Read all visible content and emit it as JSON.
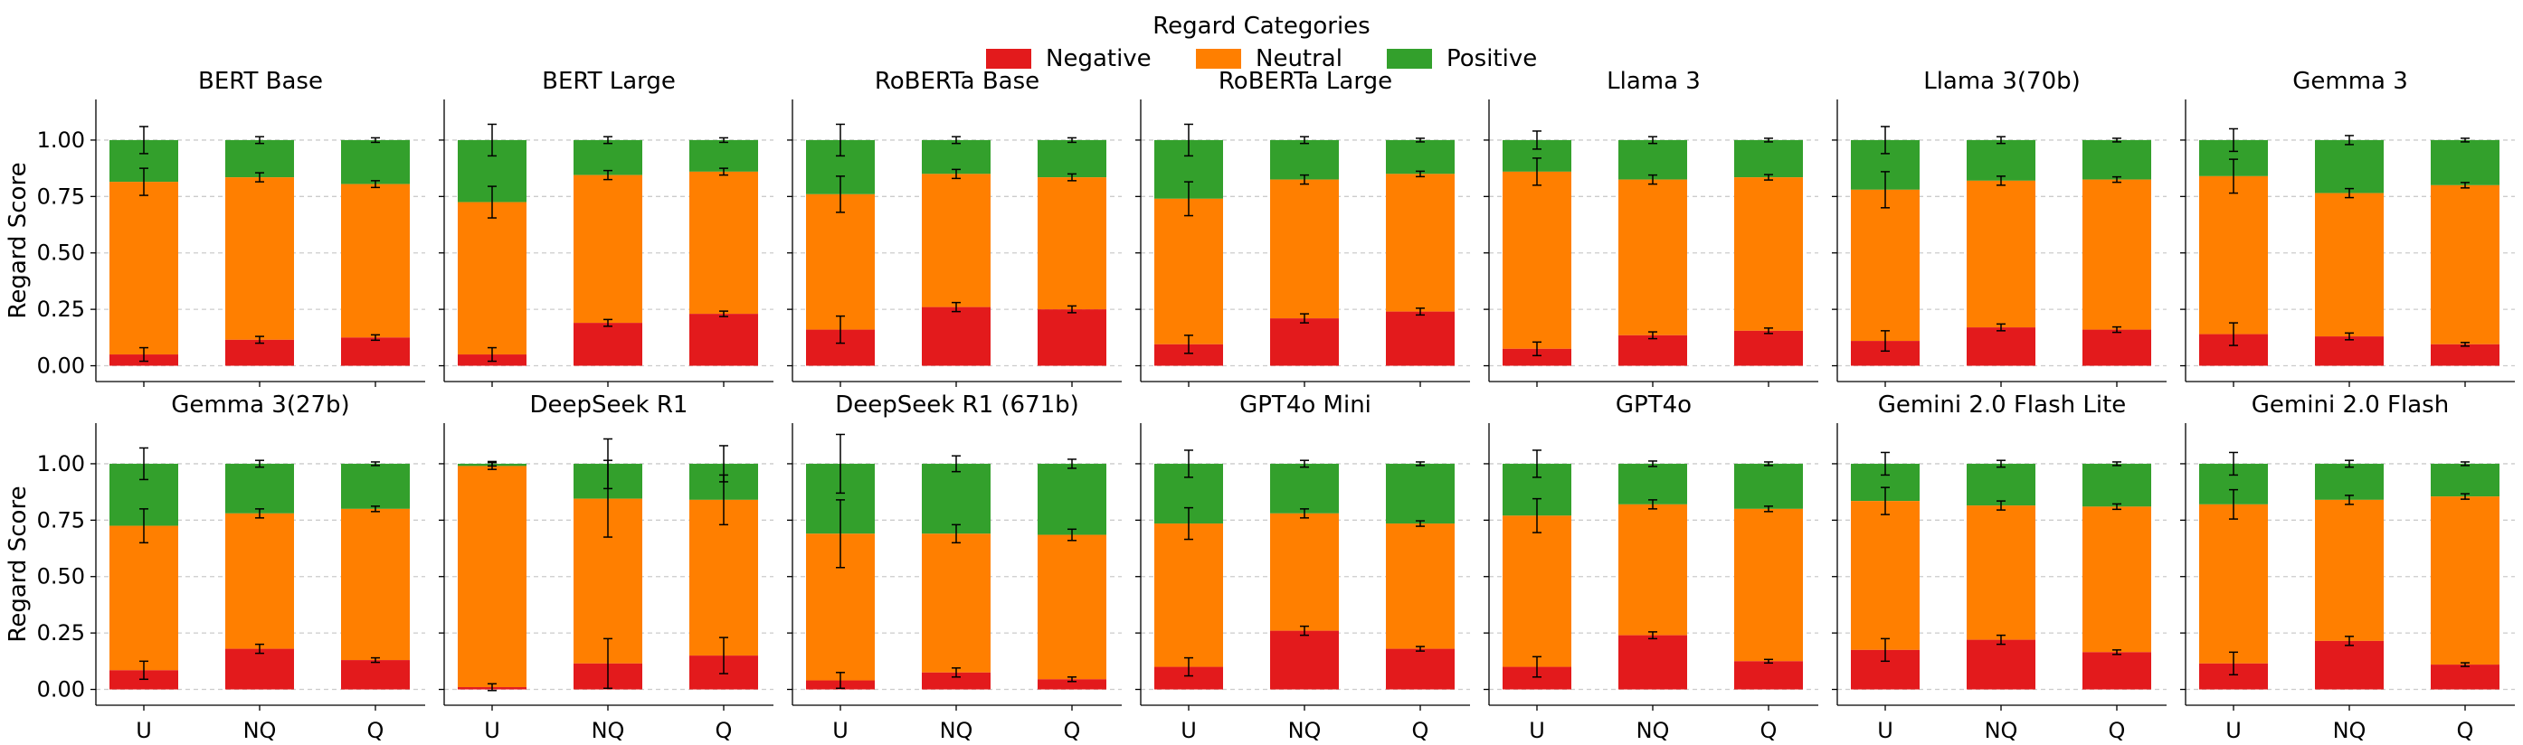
{
  "chart_data": {
    "type": "bar",
    "stacked": true,
    "legend": {
      "title": "Regard Categories",
      "placement": "top-center",
      "entries": [
        "Negative",
        "Neutral",
        "Positive"
      ]
    },
    "colors": {
      "Negative": "#e31a1c",
      "Neutral": "#ff7f00",
      "Positive": "#33a02c"
    },
    "ylabel": "Regard Score",
    "ylim": [
      -0.07,
      1.18
    ],
    "yticks": [
      "0.00",
      "0.25",
      "0.50",
      "0.75",
      "1.00"
    ],
    "categories": [
      "U",
      "NQ",
      "Q"
    ],
    "grid": "horizontal dashed",
    "panels": [
      {
        "title": "BERT Base",
        "negative": [
          0.05,
          0.115,
          0.125
        ],
        "negative_err": [
          0.03,
          0.015,
          0.012
        ],
        "neutral_top": [
          0.815,
          0.835,
          0.805
        ],
        "neutral_err": [
          0.06,
          0.02,
          0.015
        ],
        "positive_err": [
          0.06,
          0.015,
          0.01
        ]
      },
      {
        "title": "BERT Large",
        "negative": [
          0.05,
          0.19,
          0.23
        ],
        "negative_err": [
          0.03,
          0.015,
          0.012
        ],
        "neutral_top": [
          0.725,
          0.845,
          0.86
        ],
        "neutral_err": [
          0.07,
          0.02,
          0.015
        ],
        "positive_err": [
          0.07,
          0.015,
          0.01
        ]
      },
      {
        "title": "RoBERTa Base",
        "negative": [
          0.16,
          0.26,
          0.25
        ],
        "negative_err": [
          0.06,
          0.02,
          0.015
        ],
        "neutral_top": [
          0.76,
          0.85,
          0.835
        ],
        "neutral_err": [
          0.08,
          0.02,
          0.015
        ],
        "positive_err": [
          0.07,
          0.015,
          0.01
        ]
      },
      {
        "title": "RoBERTa Large",
        "negative": [
          0.095,
          0.21,
          0.24
        ],
        "negative_err": [
          0.04,
          0.02,
          0.015
        ],
        "neutral_top": [
          0.74,
          0.825,
          0.85
        ],
        "neutral_err": [
          0.075,
          0.02,
          0.012
        ],
        "positive_err": [
          0.07,
          0.015,
          0.008
        ]
      },
      {
        "title": "Llama 3",
        "negative": [
          0.075,
          0.135,
          0.155
        ],
        "negative_err": [
          0.03,
          0.015,
          0.012
        ],
        "neutral_top": [
          0.86,
          0.825,
          0.835
        ],
        "neutral_err": [
          0.06,
          0.02,
          0.012
        ],
        "positive_err": [
          0.04,
          0.015,
          0.008
        ]
      },
      {
        "title": "Llama 3(70b)",
        "negative": [
          0.11,
          0.17,
          0.16
        ],
        "negative_err": [
          0.045,
          0.015,
          0.012
        ],
        "neutral_top": [
          0.78,
          0.82,
          0.825
        ],
        "neutral_err": [
          0.08,
          0.02,
          0.012
        ],
        "positive_err": [
          0.06,
          0.015,
          0.008
        ]
      },
      {
        "title": "Gemma 3",
        "negative": [
          0.14,
          0.13,
          0.095
        ],
        "negative_err": [
          0.05,
          0.015,
          0.008
        ],
        "neutral_top": [
          0.84,
          0.765,
          0.8
        ],
        "neutral_err": [
          0.075,
          0.02,
          0.012
        ],
        "positive_err": [
          0.05,
          0.02,
          0.008
        ]
      },
      {
        "title": "Gemma 3(27b)",
        "negative": [
          0.085,
          0.18,
          0.13
        ],
        "negative_err": [
          0.04,
          0.02,
          0.01
        ],
        "neutral_top": [
          0.725,
          0.78,
          0.8
        ],
        "neutral_err": [
          0.075,
          0.02,
          0.012
        ],
        "positive_err": [
          0.07,
          0.015,
          0.008
        ]
      },
      {
        "title": "DeepSeek R1",
        "negative": [
          0.01,
          0.115,
          0.15
        ],
        "negative_err": [
          0.015,
          0.11,
          0.08
        ],
        "neutral_top": [
          0.99,
          0.845,
          0.84
        ],
        "neutral_err": [
          0.015,
          0.17,
          0.11
        ],
        "positive_err": [
          0.01,
          0.11,
          0.08
        ]
      },
      {
        "title": "DeepSeek R1 (671b)",
        "negative": [
          0.04,
          0.075,
          0.045
        ],
        "negative_err": [
          0.035,
          0.02,
          0.01
        ],
        "neutral_top": [
          0.69,
          0.69,
          0.685
        ],
        "neutral_err": [
          0.15,
          0.04,
          0.025
        ],
        "positive_err": [
          0.13,
          0.035,
          0.02
        ]
      },
      {
        "title": "GPT4o Mini",
        "negative": [
          0.1,
          0.26,
          0.18
        ],
        "negative_err": [
          0.04,
          0.02,
          0.01
        ],
        "neutral_top": [
          0.735,
          0.78,
          0.735
        ],
        "neutral_err": [
          0.07,
          0.02,
          0.012
        ],
        "positive_err": [
          0.06,
          0.015,
          0.008
        ]
      },
      {
        "title": "GPT4o",
        "negative": [
          0.1,
          0.24,
          0.125
        ],
        "negative_err": [
          0.045,
          0.015,
          0.008
        ],
        "neutral_top": [
          0.77,
          0.82,
          0.8
        ],
        "neutral_err": [
          0.075,
          0.02,
          0.012
        ],
        "positive_err": [
          0.06,
          0.012,
          0.008
        ]
      },
      {
        "title": "Gemini 2.0 Flash Lite",
        "negative": [
          0.175,
          0.22,
          0.165
        ],
        "negative_err": [
          0.05,
          0.02,
          0.01
        ],
        "neutral_top": [
          0.835,
          0.815,
          0.81
        ],
        "neutral_err": [
          0.06,
          0.02,
          0.012
        ],
        "positive_err": [
          0.05,
          0.015,
          0.008
        ]
      },
      {
        "title": "Gemini 2.0 Flash",
        "negative": [
          0.115,
          0.215,
          0.11
        ],
        "negative_err": [
          0.05,
          0.02,
          0.008
        ],
        "neutral_top": [
          0.82,
          0.84,
          0.855
        ],
        "neutral_err": [
          0.065,
          0.02,
          0.012
        ],
        "positive_err": [
          0.05,
          0.015,
          0.008
        ]
      }
    ]
  }
}
